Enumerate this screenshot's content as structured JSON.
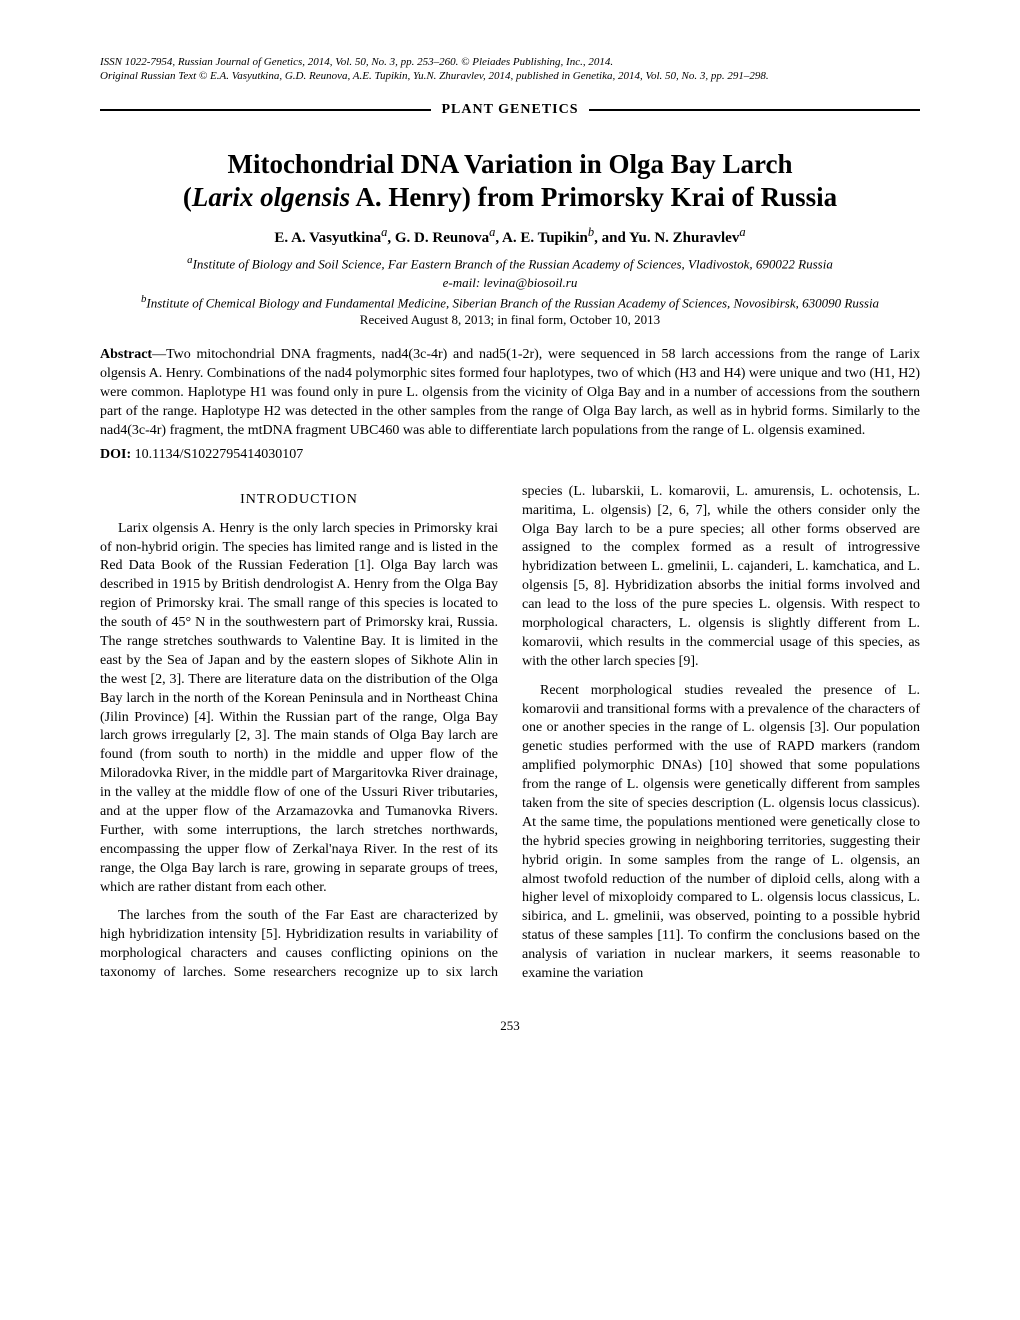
{
  "header": {
    "line1": "ISSN 1022-7954, Russian Journal of Genetics, 2014, Vol. 50, No. 3, pp. 253–260. © Pleiades Publishing, Inc., 2014.",
    "line2": "Original Russian Text © E.A. Vasyutkina, G.D. Reunova, A.E. Tupikin, Yu.N. Zhuravlev, 2014, published in Genetika, 2014, Vol. 50, No. 3, pp. 291–298."
  },
  "section_label": "PLANT GENETICS",
  "title": {
    "l1": "Mitochondrial DNA Variation in Olga Bay Larch",
    "l2a": "(",
    "l2b": "Larix olgensis",
    "l2c": " A. Henry) from Primorsky Krai of Russia"
  },
  "authors": {
    "a1": "E. A. Vasyutkina",
    "a2": ", G. D. Reunova",
    "a3": ", A. E. Tupikin",
    "a4": ", and Yu. N. Zhuravlev"
  },
  "affiliations": {
    "a": "Institute of Biology and Soil Science, Far Eastern Branch of the Russian Academy of Sciences, Vladivostok, 690022 Russia",
    "email": "e-mail: levina@biosoil.ru",
    "b": "Institute of Chemical Biology and Fundamental Medicine, Siberian Branch of the Russian Academy of Sciences, Novosibirsk, 630090 Russia"
  },
  "received": "Received August 8, 2013; in final form, October 10, 2013",
  "abstract_label": "Abstract",
  "abstract": "—Two mitochondrial DNA fragments, nad4(3c-4r) and nad5(1-2r), were sequenced in 58 larch accessions from the range of Larix olgensis A. Henry. Combinations of the nad4 polymorphic sites formed four haplotypes, two of which (H3 and H4) were unique and two (H1, H2) were common. Haplotype H1 was found only in pure L. olgensis from the vicinity of Olga Bay and in a number of accessions from the southern part of the range. Haplotype H2 was detected in the other samples from the range of Olga Bay larch, as well as in hybrid forms. Similarly to the nad4(3c-4r) fragment, the mtDNA fragment UBC460 was able to differentiate larch populations from the range of L. olgensis examined.",
  "doi_label": "DOI:",
  "doi": " 10.1134/S1022795414030107",
  "intro_heading": "INTRODUCTION",
  "p1": "Larix olgensis A. Henry is the only larch species in Primorsky krai of non-hybrid origin. The species has limited range and is listed in the Red Data Book of the Russian Federation [1]. Olga Bay larch was described in 1915 by British dendrologist A. Henry from the Olga Bay region of Primorsky krai. The small range of this species is located to the south of 45° N in the southwestern part of Primorsky krai, Russia. The range stretches southwards to Valentine Bay. It is limited in the east by the Sea of Japan and by the eastern slopes of Sikhote Alin in the west [2, 3]. There are literature data on the distribution of the Olga Bay larch in the north of the Korean Peninsula and in Northeast China (Jilin Province) [4]. Within the Russian part of the range, Olga Bay larch grows irregularly [2, 3]. The main stands of Olga Bay larch are found (from south to north) in the middle and upper flow of the Miloradovka River, in the middle part of Margaritovka River drainage, in the valley at the middle flow of one of the Ussuri River tributaries, and at the upper flow of the Arzamazovka and Tumanovka Rivers. Further, with some interruptions, the larch stretches northwards, encompassing the upper flow of Zerkal'naya River. In the rest of its range, the Olga Bay larch is rare, growing in separate groups of trees, which are rather distant from each other.",
  "p2": "The larches from the south of the Far East are characterized by high hybridization intensity [5]. Hybridization results in variability of morphological characters and causes conflicting opinions on the taxonomy of larches. Some researchers recognize up to six larch species (L. lubarskii, L. komarovii, L. amurensis, L. ochotensis, L. maritima, L. olgensis) [2, 6, 7], while the others consider only the Olga Bay larch to be a pure species; all other forms observed are assigned to the complex formed as a result of introgressive hybridization between L. gmelinii, L. cajanderi, L. kamchatica, and L. olgensis [5, 8]. Hybridization absorbs the initial forms involved and can lead to the loss of the pure species L. olgensis. With respect to morphological characters, L. olgensis is slightly different from L. komarovii, which results in the commercial usage of this species, as with the other larch species [9].",
  "p3": "Recent morphological studies revealed the presence of L. komarovii and transitional forms with a prevalence of the characters of one or another species in the range of L. olgensis [3]. Our population genetic studies performed with the use of RAPD markers (random amplified polymorphic DNAs) [10] showed that some populations from the range of L. olgensis were genetically different from samples taken from the site of species description (L. olgensis locus classicus). At the same time, the populations mentioned were genetically close to the hybrid species growing in neighboring territories, suggesting their hybrid origin. In some samples from the range of L. olgensis, an almost twofold reduction of the number of diploid cells, along with a higher level of mixoploidy compared to L. olgensis locus classicus, L. sibirica, and L. gmelinii, was observed, pointing to a possible hybrid status of these samples [11]. To confirm the conclusions based on the analysis of variation in nuclear markers, it seems reasonable to examine the variation",
  "page_number": "253"
}
